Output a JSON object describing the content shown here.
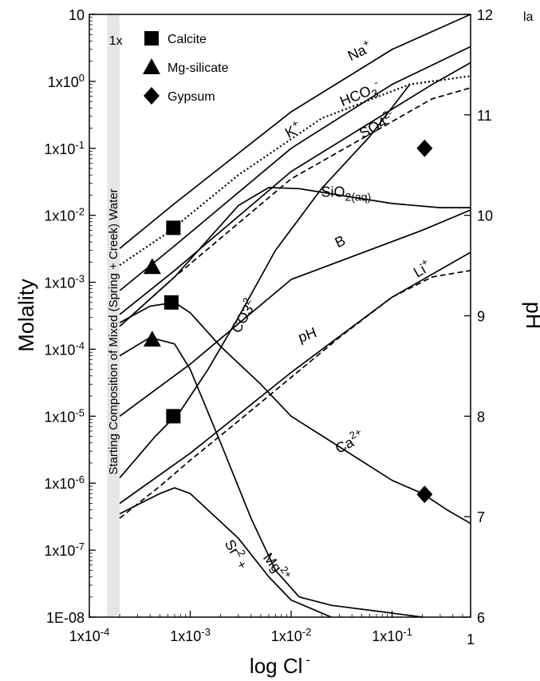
{
  "chart_data": {
    "type": "line",
    "xlabel": "log Cl",
    "xlabel_sup": "-",
    "ylabel": "Molality",
    "y2label": "pH",
    "xscale": "log",
    "yscale": "log",
    "xlim": [
      0.0001,
      0.6
    ],
    "ylim": [
      1e-08,
      10
    ],
    "y2lim": [
      6,
      12
    ],
    "x_ticks": [
      {
        "value": 0.0001,
        "label": "1x10-4"
      },
      {
        "value": 0.001,
        "label": "1x10-3"
      },
      {
        "value": 0.01,
        "label": "1x10-2"
      },
      {
        "value": 0.1,
        "label": "1x10-1"
      },
      {
        "value": 0.6,
        "label": "1"
      }
    ],
    "y_ticks": [
      {
        "value": 10,
        "label": "10"
      },
      {
        "value": 1,
        "label": "1x100"
      },
      {
        "value": 0.1,
        "label": "1x10-1"
      },
      {
        "value": 0.01,
        "label": "1x10-2"
      },
      {
        "value": 0.001,
        "label": "1x10-3"
      },
      {
        "value": 0.0001,
        "label": "1x10-4"
      },
      {
        "value": 1e-05,
        "label": "1x10-5"
      },
      {
        "value": 1e-06,
        "label": "1x10-6"
      },
      {
        "value": 1e-07,
        "label": "1x10-7"
      },
      {
        "value": 1e-08,
        "label": "1E-08"
      }
    ],
    "y2_ticks": [
      {
        "value": 12,
        "label": "12"
      },
      {
        "value": 11,
        "label": "11"
      },
      {
        "value": 10,
        "label": "10"
      },
      {
        "value": 9,
        "label": "9"
      },
      {
        "value": 8,
        "label": "8"
      },
      {
        "value": 7,
        "label": "7"
      },
      {
        "value": 6,
        "label": "6"
      }
    ],
    "corner_fragment": "la",
    "band": {
      "x": [
        0.00015,
        0.0002
      ],
      "color": "#e6e6e6",
      "label": "Starting Composition of Mixed (Spring + Creek) Water",
      "top_label": "1x"
    },
    "legend": [
      {
        "marker": "square",
        "label": "Calcite"
      },
      {
        "marker": "triangle",
        "label": "Mg-silicate"
      },
      {
        "marker": "diamond",
        "label": "Gypsum"
      }
    ],
    "series": [
      {
        "id": "na",
        "style": "solid",
        "axis": "left",
        "x": [
          0.0002,
          0.0007,
          0.01,
          0.1,
          0.6
        ],
        "y": [
          0.0032,
          0.015,
          0.35,
          3.0,
          10.0
        ]
      },
      {
        "id": "hco3",
        "style": "dotted",
        "axis": "left",
        "x": [
          0.0002,
          0.0006,
          0.003,
          0.02,
          0.15,
          0.6
        ],
        "y": [
          0.0018,
          0.0055,
          0.04,
          0.28,
          0.9,
          1.2
        ]
      },
      {
        "id": "k",
        "style": "solid",
        "axis": "left",
        "x": [
          0.0002,
          0.0007,
          0.01,
          0.1,
          0.6
        ],
        "y": [
          0.00075,
          0.0035,
          0.1,
          0.9,
          3.3
        ]
      },
      {
        "id": "so4",
        "style": "solid",
        "axis": "left",
        "x": [
          0.0002,
          0.0007,
          0.01,
          0.25,
          0.6
        ],
        "y": [
          0.00033,
          0.0015,
          0.045,
          0.9,
          1.9
        ]
      },
      {
        "id": "gypsum-dashed",
        "style": "dashed",
        "axis": "left",
        "x": [
          0.0002,
          0.0007,
          0.01,
          0.25,
          0.6
        ],
        "y": [
          0.00022,
          0.0012,
          0.035,
          0.55,
          0.8
        ]
      },
      {
        "id": "sio2",
        "style": "solid",
        "axis": "left",
        "x": [
          0.0002,
          0.0007,
          0.003,
          0.006,
          0.012,
          0.03,
          0.1,
          0.3,
          0.6
        ],
        "y": [
          0.00022,
          0.0012,
          0.014,
          0.026,
          0.025,
          0.02,
          0.015,
          0.013,
          0.013
        ]
      },
      {
        "id": "b",
        "style": "solid",
        "axis": "left",
        "x": [
          0.0002,
          0.001,
          0.01,
          0.2,
          0.6
        ],
        "y": [
          1e-05,
          6e-05,
          0.0011,
          0.006,
          0.012
        ]
      },
      {
        "id": "co3",
        "style": "solid",
        "axis": "left",
        "x": [
          0.0002,
          0.00045,
          0.0008,
          0.0015,
          0.003,
          0.007,
          0.02,
          0.06,
          0.15
        ],
        "y": 1.2e-06,
        "ys": [
          1.2e-06,
          5e-06,
          1.2e-05,
          5e-05,
          0.0003,
          0.003,
          0.025,
          0.15,
          0.9
        ]
      },
      {
        "id": "li",
        "style": "solid",
        "axis": "left",
        "x": [
          0.0002,
          0.001,
          0.01,
          0.1,
          0.6
        ],
        "y": [
          5e-07,
          2.8e-06,
          4.5e-05,
          0.0006,
          0.0028
        ]
      },
      {
        "id": "ph",
        "style": "dashed",
        "axis": "left",
        "x": [
          0.0002,
          0.0005,
          0.001,
          0.003,
          0.01,
          0.03,
          0.1,
          0.25,
          0.6
        ],
        "y": [
          3e-07,
          9e-07,
          2.2e-06,
          8.5e-06,
          3.8e-05,
          0.00015,
          0.0006,
          0.0012,
          0.0015
        ]
      },
      {
        "id": "ca",
        "style": "solid",
        "axis": "left",
        "x": [
          0.0002,
          0.0004,
          0.0007,
          0.001,
          0.002,
          0.005,
          0.01,
          0.03,
          0.1,
          0.2,
          0.35,
          0.6
        ],
        "y": [
          0.00025,
          0.00044,
          0.0005,
          0.00035,
          0.00011,
          3e-05,
          1e-05,
          3.5e-06,
          1.1e-06,
          7e-07,
          4e-07,
          2.5e-07
        ]
      },
      {
        "id": "mg",
        "style": "solid",
        "axis": "left",
        "x": [
          0.0002,
          0.0004,
          0.0007,
          0.001,
          0.002,
          0.004,
          0.007,
          0.012,
          0.025,
          0.08,
          0.2
        ],
        "y": [
          8e-05,
          0.00015,
          0.00012,
          5e-05,
          4e-06,
          3e-07,
          5e-08,
          2e-08,
          1.5e-08,
          1.2e-08,
          1e-08
        ]
      },
      {
        "id": "sr",
        "style": "solid",
        "axis": "left",
        "x": [
          0.0002,
          0.0005,
          0.0007,
          0.001,
          0.003,
          0.006,
          0.01,
          0.025
        ],
        "y": [
          3.5e-07,
          7e-07,
          8.5e-07,
          7e-07,
          1.5e-07,
          4e-08,
          1.8e-08,
          1e-08
        ]
      }
    ],
    "markers": [
      {
        "type": "square",
        "x": 0.00068,
        "y": 0.0065
      },
      {
        "type": "square",
        "x": 0.00065,
        "y": 0.0005
      },
      {
        "type": "square",
        "x": 0.00068,
        "y": 1e-05
      },
      {
        "type": "triangle",
        "x": 0.00042,
        "y": 0.0017
      },
      {
        "type": "triangle",
        "x": 0.00042,
        "y": 0.00014
      },
      {
        "type": "diamond",
        "x": 0.21,
        "y": 0.1
      },
      {
        "type": "diamond",
        "x": 0.21,
        "y": 6.8e-07
      }
    ],
    "series_labels": [
      {
        "base": "Na",
        "sup": "+",
        "x": 0.05,
        "y": 2.4,
        "rotate": -25
      },
      {
        "base": "HCO",
        "sub": "3",
        "sup": "-",
        "x": 0.05,
        "y": 0.55,
        "rotate": -22
      },
      {
        "base": "SO4",
        "sup": "2-",
        "x": 0.075,
        "y": 0.19,
        "rotate": -28
      },
      {
        "base": "K",
        "sup": "+",
        "x": 0.011,
        "y": 0.16,
        "rotate": -28
      },
      {
        "base": "SiO",
        "sub": "2(aq)",
        "x": 0.035,
        "y": 0.019,
        "rotate": 0
      },
      {
        "base": "B",
        "x": 0.032,
        "y": 0.0035,
        "rotate": -25
      },
      {
        "base": "CO3",
        "sup": "2-",
        "x": 0.0038,
        "y": 0.0003,
        "rotate": -60
      },
      {
        "base": "Li",
        "sup": "+",
        "x": 0.21,
        "y": 0.00135,
        "rotate": -30
      },
      {
        "base": "pH",
        "x": 0.015,
        "y": 0.00014,
        "rotate": -20
      },
      {
        "base": "Ca",
        "sup": "2+",
        "x": 0.04,
        "y": 3.5e-06,
        "rotate": -28
      },
      {
        "base": "Sr",
        "sup": "2",
        "tail": " +",
        "x": 0.0026,
        "y": 8e-08,
        "rotate": 60
      },
      {
        "base": "Mg",
        "sup": "2+",
        "x": 0.0065,
        "y": 5e-08,
        "rotate": 52
      }
    ]
  }
}
